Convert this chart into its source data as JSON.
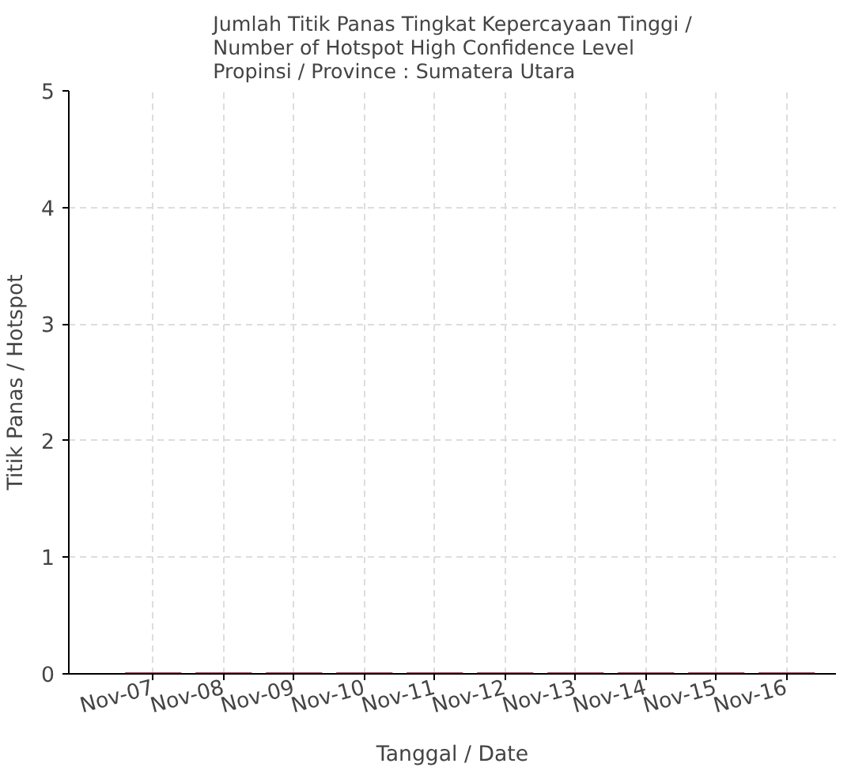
{
  "chart_data": {
    "type": "bar",
    "title": "Jumlah Titik Panas Tingkat Kepercayaan Tinggi /\nNumber of Hotspot High Confidence Level\nPropinsi / Province : Sumatera Utara",
    "xlabel": "Tanggal / Date",
    "ylabel": "Titik Panas / Hotspot",
    "categories": [
      "Nov-07",
      "Nov-08",
      "Nov-09",
      "Nov-10",
      "Nov-11",
      "Nov-12",
      "Nov-13",
      "Nov-14",
      "Nov-15",
      "Nov-16"
    ],
    "values": [
      0,
      0,
      0,
      0,
      0,
      0,
      0,
      0,
      0,
      0
    ],
    "color": "#d62d6a",
    "ylim": [
      0,
      5
    ],
    "yticks": [
      0,
      1,
      2,
      3,
      4,
      5
    ],
    "grid": true
  }
}
